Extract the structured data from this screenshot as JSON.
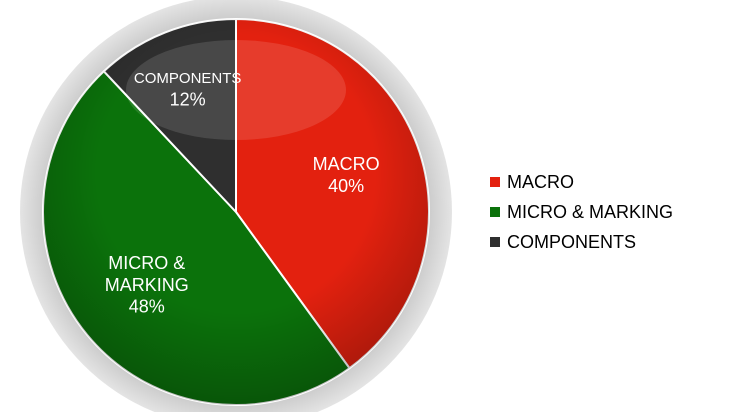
{
  "chart_data": {
    "type": "pie",
    "categories": [
      "MACRO",
      "MICRO & MARKING",
      "COMPONENTS"
    ],
    "values": [
      40,
      48,
      12
    ],
    "value_labels": [
      "40%",
      "48%",
      "12%"
    ],
    "colors": [
      "#e3210f",
      "#0b720b",
      "#2f2f2f"
    ],
    "legend": "right"
  }
}
